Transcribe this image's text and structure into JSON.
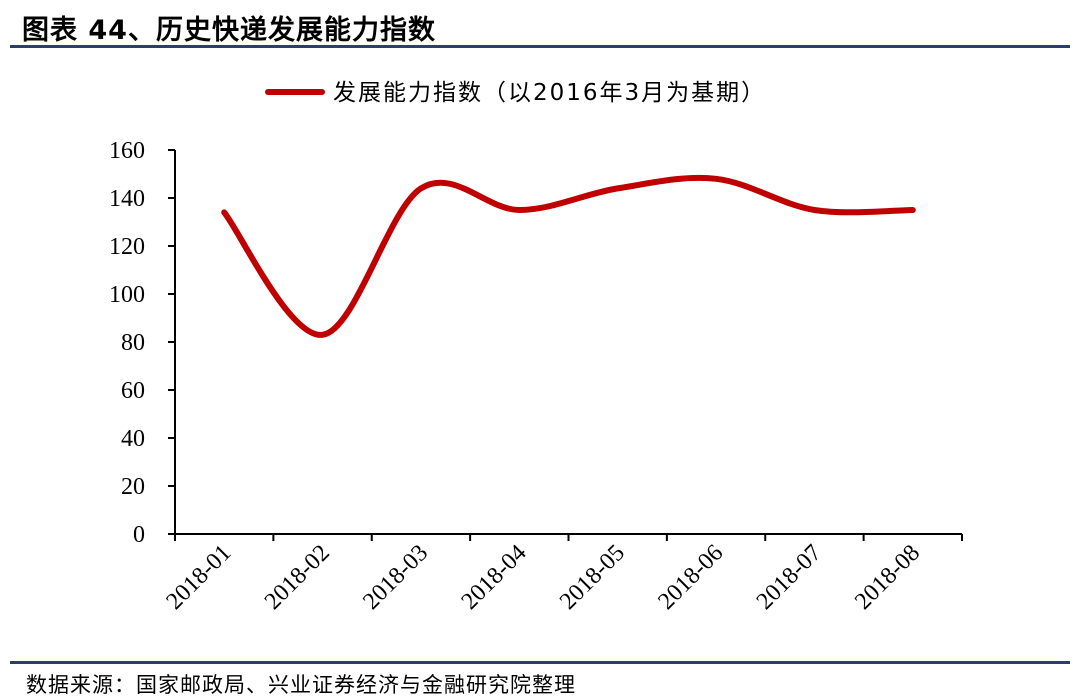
{
  "figure": {
    "title": "图表 44、历史快递发展能力指数",
    "source": "数据来源：国家邮政局、兴业证券经济与金融研究院整理"
  },
  "chart_data": {
    "type": "line",
    "title": "",
    "xlabel": "",
    "ylabel": "",
    "categories": [
      "2018-01",
      "2018-02",
      "2018-03",
      "2018-04",
      "2018-05",
      "2018-06",
      "2018-07",
      "2018-08"
    ],
    "series": [
      {
        "name": "发展能力指数（以2016年3月为基期）",
        "color": "#c00000",
        "values": [
          134,
          83,
          144,
          135,
          144,
          148,
          135,
          135
        ]
      }
    ],
    "ylim": [
      0,
      160
    ],
    "yticks": [
      0,
      20,
      40,
      60,
      80,
      100,
      120,
      140,
      160
    ],
    "smooth": true,
    "grid": false,
    "legend_position": "top-center"
  }
}
